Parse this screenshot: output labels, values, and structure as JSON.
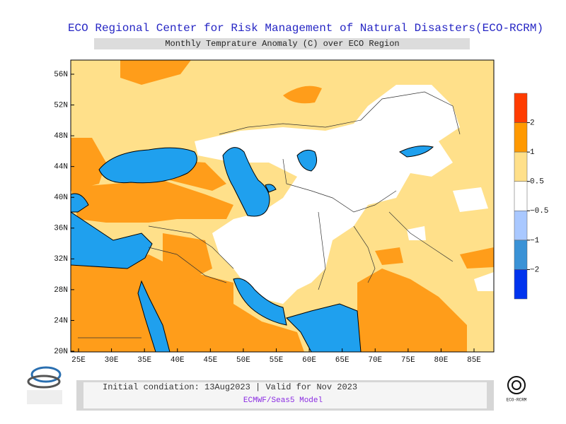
{
  "header": {
    "title": "ECO Regional Center for Risk Management of Natural Disasters(ECO-RCRM)",
    "subtitle": "Monthly Temprature Anomaly (C) over ECO Region"
  },
  "map": {
    "lat_labels": [
      "56N",
      "52N",
      "48N",
      "44N",
      "40N",
      "36N",
      "32N",
      "28N",
      "24N",
      "20N"
    ],
    "lon_labels": [
      "25E",
      "30E",
      "35E",
      "40E",
      "45E",
      "50E",
      "55E",
      "60E",
      "65E",
      "70E",
      "75E",
      "80E",
      "85E"
    ]
  },
  "colorbar": {
    "colors": [
      "#ff3c00",
      "#ff9900",
      "#ffe08a",
      "#ffffff",
      "#a9c8ff",
      "#3a92d6",
      "#0033ee"
    ],
    "labels": [
      "2",
      "1",
      "0.5",
      "−0.5",
      "−1",
      "−2"
    ]
  },
  "footer": {
    "line1": "Initial condiation: 13Aug2023 | Valid for Nov 2023",
    "line2": "ECMWF/Seas5 Model",
    "right_logo": "ECO-RCRM"
  }
}
